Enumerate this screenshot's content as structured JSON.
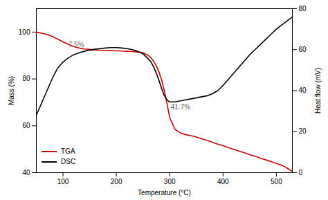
{
  "chart_data": {
    "type": "line",
    "xlabel": "Temperature (°C)",
    "ylabel": "Mass (%)",
    "y2label": "Heat flow (mV)",
    "x": [
      50,
      60,
      70,
      80,
      90,
      100,
      110,
      120,
      130,
      140,
      150,
      160,
      170,
      180,
      190,
      200,
      210,
      220,
      230,
      240,
      250,
      260,
      265,
      270,
      275,
      280,
      285,
      290,
      295,
      300,
      310,
      320,
      330,
      340,
      350,
      360,
      370,
      380,
      390,
      400,
      410,
      420,
      430,
      440,
      450,
      460,
      470,
      480,
      490,
      500,
      510,
      520,
      530
    ],
    "series": [
      {
        "name": "TGA",
        "color": "#cc0000",
        "values": [
          100,
          99.5,
          99.0,
          98.2,
          97.0,
          95.8,
          94.8,
          93.8,
          93.2,
          92.8,
          92.6,
          92.4,
          92.3,
          92.2,
          92.1,
          92.0,
          91.9,
          91.8,
          91.7,
          91.5,
          91.2,
          90.0,
          89.0,
          87.5,
          85.5,
          83.0,
          79.5,
          75.0,
          69.5,
          63.5,
          58.5,
          57.0,
          56.2,
          55.8,
          55.2,
          54.5,
          53.8,
          53.0,
          52.2,
          51.5,
          50.7,
          50.0,
          49.2,
          48.5,
          47.7,
          47.0,
          46.2,
          45.5,
          44.7,
          44.0,
          43.2,
          42.0,
          40.5
        ]
      },
      {
        "name": "DSC",
        "color": "#000000",
        "axis": "y2",
        "values": [
          28,
          34,
          40,
          46,
          51,
          54,
          56,
          57.5,
          58.5,
          59.2,
          59.8,
          60.2,
          60.5,
          60.8,
          61.0,
          61.0,
          60.8,
          60.5,
          60.0,
          59.2,
          58.0,
          55.5,
          54.0,
          51.5,
          48.5,
          45.0,
          41.0,
          37.5,
          35.5,
          34.5,
          34.5,
          35.0,
          35.5,
          36.0,
          36.5,
          37.0,
          37.5,
          38.5,
          40.0,
          42.5,
          45.5,
          48.5,
          51.5,
          54.5,
          57.5,
          60.0,
          62.5,
          65.0,
          67.5,
          70.0,
          72.0,
          74.0,
          76.0
        ]
      }
    ],
    "xlim": [
      50,
      530
    ],
    "xticks": [
      100,
      200,
      300,
      400,
      500
    ],
    "ylim": [
      40,
      110
    ],
    "yticks": [
      40,
      60,
      80,
      100
    ],
    "y2lim": [
      0,
      80
    ],
    "y2ticks": [
      0,
      20,
      40,
      60,
      80
    ],
    "annotations": [
      {
        "text": "7.5%",
        "x": 110,
        "y": 93.5
      },
      {
        "text": "41.7%",
        "x": 302,
        "y": 67.0
      }
    ],
    "legend": "lower left",
    "grid": false
  }
}
